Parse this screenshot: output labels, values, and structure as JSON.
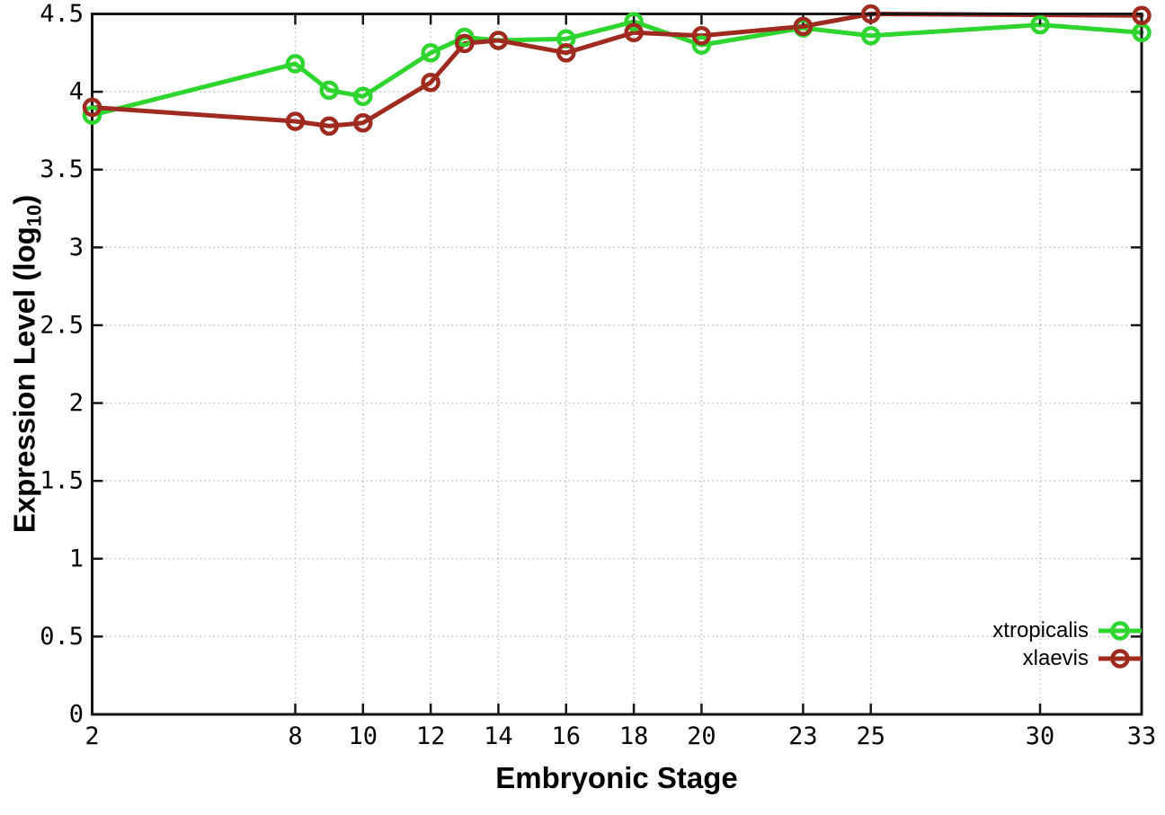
{
  "figure": {
    "background": "#ffffff",
    "border_color": "#161616",
    "grid_color": "#bfbfbf",
    "tick_color": "#161616",
    "text_color": "#000000"
  },
  "chart_data": {
    "type": "line",
    "xlabel": "Embryonic Stage",
    "ylabel": {
      "main": "Expression Level (log",
      "sub": "10",
      "suffix": ")"
    },
    "xlim": [
      2,
      33
    ],
    "ylim": [
      0,
      4.5
    ],
    "xticks": [
      2,
      8,
      10,
      12,
      14,
      16,
      18,
      20,
      23,
      25,
      30,
      33
    ],
    "yticks": [
      0,
      0.5,
      1,
      1.5,
      2,
      2.5,
      3,
      3.5,
      4,
      4.5
    ],
    "grid": true,
    "legend_position": "bottom-right",
    "marker": "open-circle",
    "series": [
      {
        "name": "xtropicalis",
        "color": "#2ed52e",
        "points": [
          [
            2,
            3.85
          ],
          [
            8,
            4.18
          ],
          [
            9,
            4.01
          ],
          [
            10,
            3.97
          ],
          [
            12,
            4.25
          ],
          [
            13,
            4.35
          ],
          [
            14,
            4.33
          ],
          [
            16,
            4.34
          ],
          [
            18,
            4.45
          ],
          [
            20,
            4.3
          ],
          [
            23,
            4.41
          ],
          [
            25,
            4.36
          ],
          [
            30,
            4.43
          ],
          [
            33,
            4.38
          ]
        ]
      },
      {
        "name": "xlaevis",
        "color": "#9f2b20",
        "points": [
          [
            2,
            3.9
          ],
          [
            8,
            3.81
          ],
          [
            9,
            3.78
          ],
          [
            10,
            3.8
          ],
          [
            12,
            4.06
          ],
          [
            13,
            4.31
          ],
          [
            14,
            4.33
          ],
          [
            16,
            4.25
          ],
          [
            18,
            4.38
          ],
          [
            20,
            4.36
          ],
          [
            23,
            4.42
          ],
          [
            25,
            4.5
          ],
          [
            33,
            4.49
          ]
        ]
      }
    ]
  }
}
